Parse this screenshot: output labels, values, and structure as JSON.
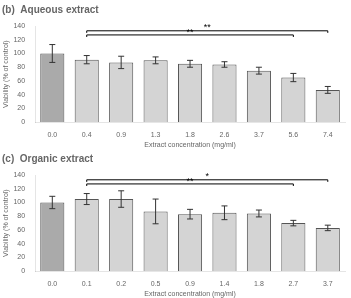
{
  "chart_data": [
    {
      "type": "bar",
      "title": "(b)  Aqueous extract",
      "categories": [
        "0.0",
        "0.4",
        "0.9",
        "1.3",
        "1.8",
        "2.6",
        "3.7",
        "5.6",
        "7.4"
      ],
      "values": [
        100,
        91,
        87,
        90,
        85,
        84,
        75,
        65,
        47
      ],
      "errors": [
        13,
        6,
        9,
        5,
        5,
        4,
        5,
        6,
        5
      ],
      "colors": [
        "#aaaaaa",
        "#d4d4d4",
        "#d4d4d4",
        "#d4d4d4",
        "#d4d4d4",
        "#d4d4d4",
        "#d4d4d4",
        "#d4d4d4",
        "#d4d4d4"
      ],
      "xlabel": "Extract concentration (mg/ml)",
      "ylabel": "Viability (% of control)",
      "ylim": [
        0,
        140
      ],
      "yticks": [
        0,
        20,
        40,
        60,
        80,
        100,
        120,
        140
      ],
      "grid": false,
      "annotations": [
        {
          "x1": "0.4",
          "x2": "7.4",
          "y": 133,
          "label": "**"
        },
        {
          "x1": "0.4",
          "x2": "5.6",
          "y": 127,
          "label": "**"
        }
      ]
    },
    {
      "type": "bar",
      "title": "(c)  Organic extract",
      "categories": [
        "0.0",
        "0.1",
        "0.2",
        "0.5",
        "0.9",
        "1.4",
        "1.8",
        "2.7",
        "3.7"
      ],
      "values": [
        100,
        105,
        105,
        87,
        83,
        85,
        84,
        70,
        63
      ],
      "errors": [
        9,
        8,
        12,
        18,
        7,
        10,
        5,
        4,
        4
      ],
      "colors": [
        "#aaaaaa",
        "#d4d4d4",
        "#d4d4d4",
        "#d4d4d4",
        "#d4d4d4",
        "#d4d4d4",
        "#d4d4d4",
        "#d4d4d4",
        "#d4d4d4"
      ],
      "xlabel": "Extract concentration (mg/ml)",
      "ylabel": "Viability (% of control)",
      "ylim": [
        0,
        140
      ],
      "yticks": [
        0,
        20,
        40,
        60,
        80,
        100,
        120,
        140
      ],
      "grid": false,
      "annotations": [
        {
          "x1": "0.1",
          "x2": "3.7",
          "y": 133,
          "label": "*"
        },
        {
          "x1": "0.1",
          "x2": "2.7",
          "y": 127,
          "label": "**"
        }
      ]
    }
  ]
}
